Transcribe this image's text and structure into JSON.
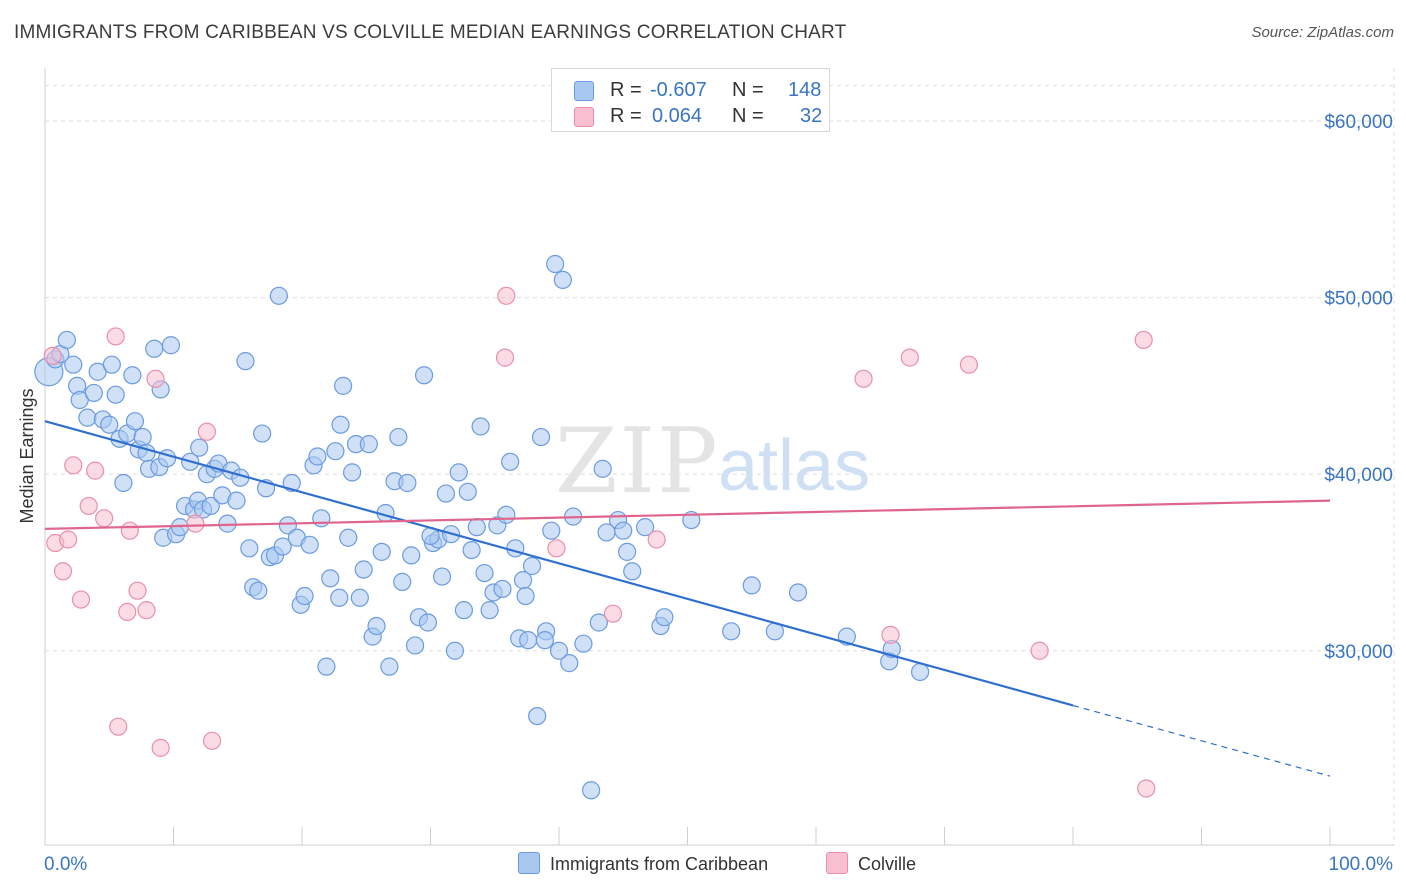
{
  "title": "IMMIGRANTS FROM CARIBBEAN VS COLVILLE MEDIAN EARNINGS CORRELATION CHART",
  "source": "Source: ZipAtlas.com",
  "watermark": {
    "zip": "ZIP",
    "atlas": "atlas"
  },
  "colors": {
    "blue_fill": "#a9c8f0",
    "blue_stroke": "#6b9be0",
    "blue_line": "#2f6fd0",
    "pink_fill": "#f7bfd0",
    "pink_stroke": "#e98fac",
    "pink_line": "#e0658e",
    "tick_label": "#3a75c4",
    "grid": "#dcdcdc"
  },
  "legend": {
    "rows": [
      {
        "r_label": "R =",
        "r_value": "-0.607",
        "n_label": "N =",
        "n_value": "148",
        "color": "#a9c8f0",
        "stroke": "#6b9be0"
      },
      {
        "r_label": "R =",
        "r_value": "0.064",
        "n_label": "N =",
        "n_value": "32",
        "color": "#f7bfd0",
        "stroke": "#e98fac"
      }
    ]
  },
  "bottom_legend": [
    {
      "label": "Immigrants from Caribbean",
      "color": "#a9c8f0",
      "stroke": "#6b9be0"
    },
    {
      "label": "Colville",
      "color": "#f7bfd0",
      "stroke": "#e98fac"
    }
  ],
  "chart_data": {
    "type": "scatter",
    "title": "IMMIGRANTS FROM CARIBBEAN VS COLVILLE MEDIAN EARNINGS CORRELATION CHART",
    "xlabel": "",
    "ylabel": "Median Earnings",
    "xlim": [
      0,
      100
    ],
    "ylim": [
      19000,
      63000
    ],
    "x_tick_labels": {
      "left": "0.0%",
      "right": "100.0%"
    },
    "y_ticks": [
      {
        "value": 30000,
        "label": "$30,000"
      },
      {
        "value": 40000,
        "label": "$40,000"
      },
      {
        "value": 50000,
        "label": "$50,000"
      },
      {
        "value": 60000,
        "label": "$60,000"
      }
    ],
    "grid": true,
    "legend_placement": "top-center",
    "series": [
      {
        "name": "Immigrants from Caribbean",
        "color": "#a9c8f0",
        "trend": {
          "x1": 0,
          "y1": 43000,
          "x2_solid": 80,
          "y2_solid": 26900,
          "x2_dashed": 100,
          "y2_dashed": 22900
        },
        "points": [
          [
            0.3,
            45800,
            9
          ],
          [
            0.8,
            46500,
            5
          ],
          [
            1.2,
            46800,
            5
          ],
          [
            1.7,
            47600,
            5
          ],
          [
            2.2,
            46200,
            5
          ],
          [
            2.5,
            45000,
            5
          ],
          [
            2.7,
            44200,
            5
          ],
          [
            3.3,
            43200,
            5
          ],
          [
            3.8,
            44600,
            5
          ],
          [
            4.1,
            45800,
            5
          ],
          [
            4.5,
            43100,
            5
          ],
          [
            5.0,
            42800,
            5
          ],
          [
            5.2,
            46200,
            5
          ],
          [
            5.5,
            44500,
            5
          ],
          [
            5.8,
            42000,
            5
          ],
          [
            6.1,
            39500,
            5
          ],
          [
            6.4,
            42300,
            5
          ],
          [
            6.8,
            45600,
            5
          ],
          [
            7.0,
            43000,
            5
          ],
          [
            7.3,
            41400,
            5
          ],
          [
            7.6,
            42100,
            5
          ],
          [
            7.9,
            41200,
            5
          ],
          [
            8.1,
            40300,
            5
          ],
          [
            8.5,
            47100,
            5
          ],
          [
            8.9,
            40400,
            5
          ],
          [
            9.2,
            36400,
            5
          ],
          [
            9.5,
            40900,
            5
          ],
          [
            9.8,
            47300,
            5
          ],
          [
            10.2,
            36600,
            5
          ],
          [
            10.5,
            37000,
            5
          ],
          [
            10.9,
            38200,
            5
          ],
          [
            11.3,
            40700,
            5
          ],
          [
            11.6,
            38000,
            5
          ],
          [
            11.9,
            38500,
            5
          ],
          [
            12.3,
            38000,
            5
          ],
          [
            12.6,
            40000,
            5
          ],
          [
            12.9,
            38200,
            5
          ],
          [
            13.2,
            40300,
            5
          ],
          [
            13.5,
            40600,
            5
          ],
          [
            13.8,
            38800,
            5
          ],
          [
            14.2,
            37200,
            5
          ],
          [
            14.5,
            40200,
            5
          ],
          [
            14.9,
            38500,
            5
          ],
          [
            15.2,
            39800,
            5
          ],
          [
            15.6,
            46400,
            5
          ],
          [
            15.9,
            35800,
            5
          ],
          [
            16.2,
            33600,
            5
          ],
          [
            16.6,
            33400,
            5
          ],
          [
            16.9,
            42300,
            5
          ],
          [
            17.2,
            39200,
            5
          ],
          [
            17.5,
            35300,
            5
          ],
          [
            17.9,
            35400,
            5
          ],
          [
            18.2,
            50100,
            5
          ],
          [
            18.5,
            35900,
            5
          ],
          [
            18.9,
            37100,
            5
          ],
          [
            19.2,
            39500,
            5
          ],
          [
            19.6,
            36400,
            5
          ],
          [
            19.9,
            32600,
            5
          ],
          [
            20.2,
            33100,
            5
          ],
          [
            20.6,
            36000,
            5
          ],
          [
            20.9,
            40500,
            5
          ],
          [
            21.2,
            41000,
            5
          ],
          [
            21.5,
            37500,
            5
          ],
          [
            21.9,
            29100,
            5
          ],
          [
            22.2,
            34100,
            5
          ],
          [
            22.6,
            41300,
            5
          ],
          [
            22.9,
            33000,
            5
          ],
          [
            23.2,
            45000,
            5
          ],
          [
            23.6,
            36400,
            5
          ],
          [
            23.9,
            40100,
            5
          ],
          [
            24.2,
            41700,
            5
          ],
          [
            24.5,
            33000,
            5
          ],
          [
            24.8,
            34600,
            5
          ],
          [
            25.2,
            41700,
            5
          ],
          [
            25.5,
            30800,
            5
          ],
          [
            25.8,
            31400,
            5
          ],
          [
            26.2,
            35600,
            5
          ],
          [
            26.5,
            37800,
            5
          ],
          [
            26.8,
            29100,
            5
          ],
          [
            27.2,
            39600,
            5
          ],
          [
            27.5,
            42100,
            5
          ],
          [
            27.8,
            33900,
            5
          ],
          [
            28.2,
            39500,
            5
          ],
          [
            28.5,
            35400,
            5
          ],
          [
            28.8,
            30300,
            5
          ],
          [
            29.1,
            31900,
            5
          ],
          [
            29.5,
            45600,
            5
          ],
          [
            29.8,
            31600,
            5
          ],
          [
            30.2,
            36100,
            5
          ],
          [
            30.6,
            36300,
            5
          ],
          [
            30.9,
            34200,
            5
          ],
          [
            31.2,
            38900,
            5
          ],
          [
            31.6,
            36600,
            5
          ],
          [
            31.9,
            30000,
            5
          ],
          [
            32.2,
            40100,
            5
          ],
          [
            32.6,
            32300,
            5
          ],
          [
            32.9,
            39000,
            5
          ],
          [
            33.2,
            35700,
            5
          ],
          [
            33.6,
            37000,
            5
          ],
          [
            33.9,
            42700,
            5
          ],
          [
            34.2,
            34400,
            5
          ],
          [
            34.6,
            32300,
            5
          ],
          [
            34.9,
            33300,
            5
          ],
          [
            35.2,
            37100,
            5
          ],
          [
            35.6,
            33500,
            5
          ],
          [
            35.9,
            37700,
            5
          ],
          [
            36.2,
            40700,
            5
          ],
          [
            36.6,
            35800,
            5
          ],
          [
            36.9,
            30700,
            5
          ],
          [
            37.2,
            34000,
            5
          ],
          [
            37.6,
            30600,
            5
          ],
          [
            37.9,
            34800,
            5
          ],
          [
            38.3,
            26300,
            5
          ],
          [
            38.6,
            42100,
            5
          ],
          [
            39.0,
            31100,
            5
          ],
          [
            39.4,
            36800,
            5
          ],
          [
            39.7,
            51900,
            5
          ],
          [
            40.3,
            51000,
            5
          ],
          [
            40.8,
            29300,
            5
          ],
          [
            41.1,
            37600,
            5
          ],
          [
            41.9,
            30400,
            5
          ],
          [
            42.5,
            22100,
            5
          ],
          [
            43.1,
            31600,
            5
          ],
          [
            43.4,
            40300,
            5
          ],
          [
            43.7,
            36700,
            5
          ],
          [
            44.6,
            37400,
            5
          ],
          [
            45.0,
            36800,
            5
          ],
          [
            45.3,
            35600,
            5
          ],
          [
            45.7,
            34500,
            5
          ],
          [
            46.7,
            37000,
            5
          ],
          [
            47.9,
            31400,
            5
          ],
          [
            48.2,
            31900,
            5
          ],
          [
            50.3,
            37400,
            5
          ],
          [
            53.4,
            31100,
            5
          ],
          [
            55.0,
            33700,
            5
          ],
          [
            56.8,
            31100,
            5
          ],
          [
            58.6,
            33300,
            5
          ],
          [
            62.4,
            30800,
            5
          ],
          [
            65.7,
            29400,
            5
          ],
          [
            65.9,
            30100,
            5
          ],
          [
            68.1,
            28800,
            5
          ],
          [
            38.9,
            30600,
            5
          ],
          [
            40.0,
            30000,
            5
          ],
          [
            37.4,
            33100,
            5
          ],
          [
            30.0,
            36500,
            5
          ],
          [
            23.0,
            42800,
            5
          ],
          [
            12.0,
            41500,
            5
          ],
          [
            9.0,
            44800,
            5
          ]
        ]
      },
      {
        "name": "Colville",
        "color": "#f7bfd0",
        "trend": {
          "x1": 0,
          "y1": 36900,
          "x2": 100,
          "y2": 38500
        },
        "points": [
          [
            0.6,
            46700,
            5
          ],
          [
            0.8,
            36100,
            5
          ],
          [
            1.4,
            34500,
            5
          ],
          [
            1.8,
            36300,
            5
          ],
          [
            2.2,
            40500,
            5
          ],
          [
            2.8,
            32900,
            5
          ],
          [
            3.4,
            38200,
            5
          ],
          [
            3.9,
            40200,
            5
          ],
          [
            4.6,
            37500,
            5
          ],
          [
            5.5,
            47800,
            5
          ],
          [
            5.7,
            25700,
            5
          ],
          [
            6.4,
            32200,
            5
          ],
          [
            6.6,
            36800,
            5
          ],
          [
            7.2,
            33400,
            5
          ],
          [
            7.9,
            32300,
            5
          ],
          [
            8.6,
            45400,
            5
          ],
          [
            9.0,
            24500,
            5
          ],
          [
            11.7,
            37200,
            5
          ],
          [
            12.6,
            42400,
            5
          ],
          [
            13.0,
            24900,
            5
          ],
          [
            35.9,
            50100,
            5
          ],
          [
            35.8,
            46600,
            5
          ],
          [
            39.8,
            35800,
            5
          ],
          [
            44.2,
            32100,
            5
          ],
          [
            47.6,
            36300,
            5
          ],
          [
            63.7,
            45400,
            5
          ],
          [
            65.8,
            30900,
            5
          ],
          [
            67.3,
            46600,
            5
          ],
          [
            71.9,
            46200,
            5
          ],
          [
            77.4,
            30000,
            5
          ],
          [
            85.5,
            47600,
            5
          ],
          [
            85.7,
            22200,
            5
          ]
        ]
      }
    ]
  }
}
